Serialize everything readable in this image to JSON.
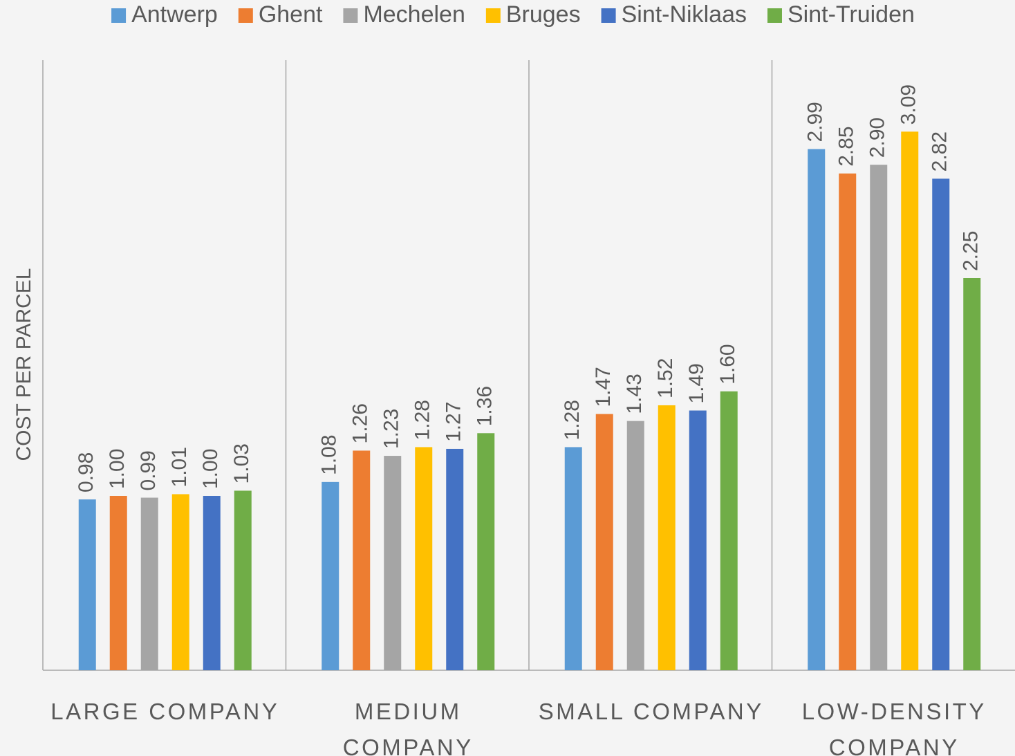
{
  "chart_data": {
    "type": "bar",
    "y_label": "COST PER PARCEL",
    "categories": [
      "LARGE COMPANY",
      "MEDIUM COMPANY",
      "SMALL COMPANY",
      "LOW-DENSITY COMPANY"
    ],
    "series": [
      {
        "name": "Antwerp",
        "color": "#5b9bd5",
        "values": [
          0.98,
          1.08,
          1.28,
          2.99
        ],
        "value_labels": [
          "0.98",
          "1.08",
          "1.28",
          "2.99"
        ]
      },
      {
        "name": "Ghent",
        "color": "#ed7d31",
        "values": [
          1,
          1.26,
          1.47,
          2.85
        ],
        "value_labels": [
          "1.00",
          "1.26",
          "1.47",
          "2.85"
        ]
      },
      {
        "name": "Mechelen",
        "color": "#a5a5a5",
        "values": [
          0.99,
          1.23,
          1.43,
          2.9
        ],
        "value_labels": [
          "0.99",
          "1.23",
          "1.43",
          "2.90"
        ]
      },
      {
        "name": "Bruges",
        "color": "#ffc000",
        "values": [
          1.01,
          1.28,
          1.52,
          3.09
        ],
        "value_labels": [
          "1.01",
          "1.28",
          "1.52",
          "3.09"
        ]
      },
      {
        "name": "Sint-Niklaas",
        "color": "#4472c4",
        "values": [
          1,
          1.27,
          1.49,
          2.82
        ],
        "value_labels": [
          "1.00",
          "1.27",
          "1.49",
          "2.82"
        ]
      },
      {
        "name": "Sint-Truiden",
        "color": "#70ad47",
        "values": [
          1.03,
          1.36,
          1.6,
          2.25
        ],
        "value_labels": [
          "1.03",
          "1.36",
          "1.60",
          "2.25"
        ]
      }
    ],
    "ylim": [
      0,
      3.5
    ],
    "legend": "top"
  }
}
